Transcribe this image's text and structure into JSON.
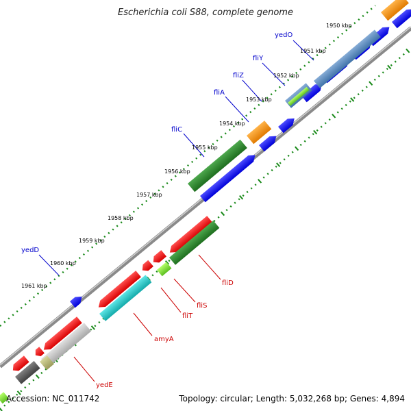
{
  "title": "Escherichia coli S88, complete genome",
  "footer": {
    "accession": "Accession: NC_011742",
    "summary": "Topology: circular; Length: 5,032,268 bp; Genes: 4,894"
  },
  "tick_labels": [
    "1950 kbp",
    "1951 kbp",
    "1952 kbp",
    "1953 kbp",
    "1954 kbp",
    "1955 kbp",
    "1956 kbp",
    "1957 kbp",
    "1958 kbp",
    "1959 kbp",
    "1960 kbp",
    "1961 kbp"
  ],
  "gene_labels_top": [
    "yedO",
    "fliY",
    "fliZ",
    "fliA",
    "fliC",
    "yedD"
  ],
  "gene_labels_bottom": [
    "fliD",
    "fliS",
    "fliT",
    "amyA",
    "yedE"
  ],
  "colors": {
    "forward_cds": "#0000ff",
    "reverse_cds": "#ff0000",
    "top_label": "#0000cc",
    "bottom_label": "#cc0000",
    "backbone": "#808080",
    "tick_dots": "#1a8a1a",
    "green_gene": "#2e8b2e",
    "orange_gene": "#ff9a1a",
    "cyan_gene": "#22cccc",
    "steelblue_gene": "#5b8fc0",
    "grey_gene": "#555555",
    "silver_gene": "#bbbbbb"
  }
}
